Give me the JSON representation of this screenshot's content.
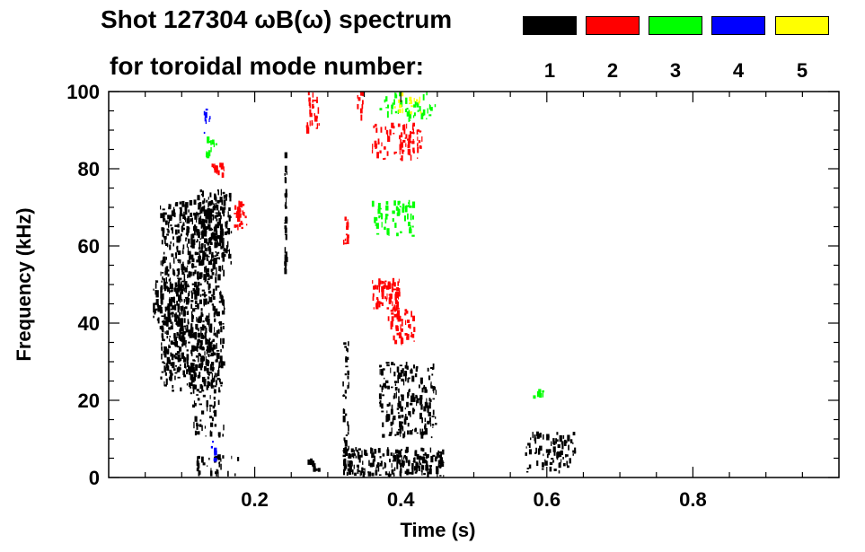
{
  "chart_data": {
    "type": "heatmap",
    "title_line1": "Shot 127304 ωB(ω) spectrum",
    "title_line2": "for toroidal mode number:",
    "xlabel": "Time (s)",
    "ylabel": "Frequency (kHz)",
    "xlim": [
      0.0,
      1.0
    ],
    "ylim": [
      0,
      100
    ],
    "xticks": [
      0.2,
      0.4,
      0.6,
      0.8
    ],
    "xtick_labels": [
      "0.2",
      "0.4",
      "0.6",
      "0.8"
    ],
    "yticks": [
      0,
      20,
      40,
      60,
      80,
      100
    ],
    "ytick_labels": [
      "0",
      "20",
      "40",
      "60",
      "80",
      "100"
    ],
    "legend": [
      {
        "label": "1",
        "color": "#000000"
      },
      {
        "label": "2",
        "color": "#ff0000"
      },
      {
        "label": "3",
        "color": "#00ff00"
      },
      {
        "label": "4",
        "color": "#0000ff"
      },
      {
        "label": "5",
        "color": "#ffff00"
      }
    ],
    "patches": [
      {
        "mode": 1,
        "t": [
          0.07,
          0.16
        ],
        "f": [
          22,
          72
        ],
        "density": 0.72
      },
      {
        "mode": 1,
        "t": [
          0.06,
          0.11
        ],
        "f": [
          38,
          52
        ],
        "density": 0.6
      },
      {
        "mode": 1,
        "t": [
          0.12,
          0.17
        ],
        "f": [
          55,
          75
        ],
        "density": 0.5
      },
      {
        "mode": 1,
        "t": [
          0.11,
          0.16
        ],
        "f": [
          10,
          40
        ],
        "density": 0.25
      },
      {
        "mode": 1,
        "t": [
          0.24,
          0.245
        ],
        "f": [
          52,
          85
        ],
        "density": 0.8
      },
      {
        "mode": 1,
        "t": [
          0.32,
          0.46
        ],
        "f": [
          0,
          8
        ],
        "density": 0.75
      },
      {
        "mode": 1,
        "t": [
          0.32,
          0.33
        ],
        "f": [
          2,
          36
        ],
        "density": 0.4
      },
      {
        "mode": 1,
        "t": [
          0.37,
          0.45
        ],
        "f": [
          10,
          30
        ],
        "density": 0.5
      },
      {
        "mode": 1,
        "t": [
          0.27,
          0.29
        ],
        "f": [
          1,
          5
        ],
        "density": 0.4
      },
      {
        "mode": 1,
        "t": [
          0.57,
          0.64
        ],
        "f": [
          1,
          12
        ],
        "density": 0.4
      },
      {
        "mode": 1,
        "t": [
          0.12,
          0.18
        ],
        "f": [
          0,
          6
        ],
        "density": 0.3
      },
      {
        "mode": 2,
        "t": [
          0.14,
          0.16
        ],
        "f": [
          77,
          82
        ],
        "density": 0.5
      },
      {
        "mode": 2,
        "t": [
          0.17,
          0.19
        ],
        "f": [
          64,
          72
        ],
        "density": 0.6
      },
      {
        "mode": 2,
        "t": [
          0.27,
          0.29
        ],
        "f": [
          89,
          100
        ],
        "density": 0.4
      },
      {
        "mode": 2,
        "t": [
          0.36,
          0.4
        ],
        "f": [
          43,
          52
        ],
        "density": 0.75
      },
      {
        "mode": 2,
        "t": [
          0.38,
          0.42
        ],
        "f": [
          34,
          44
        ],
        "density": 0.4
      },
      {
        "mode": 2,
        "t": [
          0.36,
          0.43
        ],
        "f": [
          82,
          92
        ],
        "density": 0.45
      },
      {
        "mode": 2,
        "t": [
          0.34,
          0.35
        ],
        "f": [
          92,
          100
        ],
        "density": 0.3
      },
      {
        "mode": 2,
        "t": [
          0.32,
          0.33
        ],
        "f": [
          60,
          68
        ],
        "density": 0.3
      },
      {
        "mode": 3,
        "t": [
          0.36,
          0.42
        ],
        "f": [
          62,
          72
        ],
        "density": 0.35
      },
      {
        "mode": 3,
        "t": [
          0.37,
          0.45
        ],
        "f": [
          92,
          100
        ],
        "density": 0.25
      },
      {
        "mode": 3,
        "t": [
          0.13,
          0.15
        ],
        "f": [
          82,
          90
        ],
        "density": 0.2
      },
      {
        "mode": 3,
        "t": [
          0.58,
          0.6
        ],
        "f": [
          20,
          24
        ],
        "density": 0.2
      },
      {
        "mode": 4,
        "t": [
          0.13,
          0.14
        ],
        "f": [
          88,
          96
        ],
        "density": 0.25
      },
      {
        "mode": 4,
        "t": [
          0.14,
          0.15
        ],
        "f": [
          4,
          10
        ],
        "density": 0.15
      },
      {
        "mode": 5,
        "t": [
          0.39,
          0.43
        ],
        "f": [
          94,
          100
        ],
        "density": 0.2
      }
    ]
  }
}
